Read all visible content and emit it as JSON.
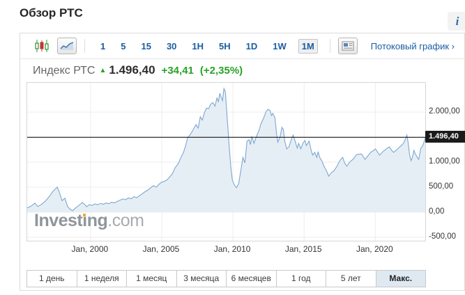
{
  "page": {
    "title": "Обзор РТС",
    "info_icon": "i"
  },
  "toolbar": {
    "chart_types": [
      {
        "name": "candlestick",
        "selected": false
      },
      {
        "name": "area",
        "selected": true
      }
    ],
    "intervals": [
      {
        "label": "1",
        "selected": false
      },
      {
        "label": "5",
        "selected": false
      },
      {
        "label": "15",
        "selected": false
      },
      {
        "label": "30",
        "selected": false
      },
      {
        "label": "1H",
        "selected": false
      },
      {
        "label": "5H",
        "selected": false
      },
      {
        "label": "1D",
        "selected": false
      },
      {
        "label": "1W",
        "selected": false
      },
      {
        "label": "1M",
        "selected": true
      }
    ],
    "news_button": "news-panel",
    "stream_link": "Потоковый график ›"
  },
  "quote": {
    "name": "Индекс РТС",
    "arrow": "▲",
    "last": "1.496,40",
    "change": "+34,41",
    "change_pct": "(+2,35%)"
  },
  "watermark": {
    "part1": "Invest",
    "part2_dotless": "ı",
    "part3": "ng",
    "suffix": ".com"
  },
  "range_buttons": [
    {
      "label": "1 день",
      "selected": false
    },
    {
      "label": "1 неделя",
      "selected": false
    },
    {
      "label": "1 месяц",
      "selected": false
    },
    {
      "label": "3 месяца",
      "selected": false
    },
    {
      "label": "6 месяцев",
      "selected": false
    },
    {
      "label": "1 год",
      "selected": false
    },
    {
      "label": "5 лет",
      "selected": false
    },
    {
      "label": "Макс.",
      "selected": true
    }
  ],
  "colors": {
    "accent_blue": "#1a5da2",
    "up_green": "#28a228",
    "chart_line": "#7da7cf",
    "chart_fill": "#e6eef5",
    "price_tag_bg": "#1b1b1b"
  },
  "chart_data": {
    "type": "area",
    "instrument": "Индекс РТС (RTS Index)",
    "range": "Макс.",
    "grid": true,
    "legend": "none",
    "x_range": [
      1995.55,
      2023.51
    ],
    "y_range": [
      -570,
      2585
    ],
    "baseline": 0,
    "x_ticks": [
      {
        "year": 2000,
        "label": "Jan, 2000"
      },
      {
        "year": 2005,
        "label": "Jan, 2005"
      },
      {
        "year": 2010,
        "label": "Jan, 2010"
      },
      {
        "year": 2015,
        "label": "Jan, 2015"
      },
      {
        "year": 2020,
        "label": "Jan, 2020"
      }
    ],
    "y_ticks": [
      {
        "value": 2000,
        "label": "2.000,00"
      },
      {
        "value": 1000,
        "label": "1.000,00"
      },
      {
        "value": 500,
        "label": "500,00"
      },
      {
        "value": 0,
        "label": "0,00"
      },
      {
        "value": -500,
        "label": "-500,00"
      }
    ],
    "current_price": {
      "value": 1496.4,
      "label": "1.496,40"
    },
    "series": [
      {
        "name": "RTS",
        "x": [
          1995.55,
          1995.84,
          1996.09,
          1996.29,
          1996.53,
          1996.82,
          1997.12,
          1997.36,
          1997.51,
          1997.66,
          1997.8,
          1998.0,
          1998.2,
          1998.39,
          1998.59,
          1998.74,
          1998.93,
          1999.13,
          1999.28,
          1999.42,
          1999.57,
          1999.72,
          1999.91,
          2000.11,
          2000.3,
          2000.5,
          2000.7,
          2000.89,
          2001.09,
          2001.28,
          2001.48,
          2001.68,
          2001.87,
          2002.07,
          2002.27,
          2002.46,
          2002.66,
          2002.85,
          2003.05,
          2003.25,
          2003.44,
          2003.64,
          2003.83,
          2004.03,
          2004.23,
          2004.42,
          2004.62,
          2004.81,
          2005.01,
          2005.21,
          2005.35,
          2005.55,
          2005.75,
          2005.94,
          2006.14,
          2006.33,
          2006.53,
          2006.68,
          2006.82,
          2007.02,
          2007.22,
          2007.41,
          2007.56,
          2007.71,
          2007.85,
          2008.0,
          2008.15,
          2008.29,
          2008.44,
          2008.59,
          2008.74,
          2008.88,
          2008.98,
          2009.08,
          2009.18,
          2009.27,
          2009.37,
          2009.47,
          2009.57,
          2009.67,
          2009.76,
          2009.86,
          2009.96,
          2010.11,
          2010.25,
          2010.4,
          2010.55,
          2010.7,
          2010.84,
          2010.99,
          2011.14,
          2011.23,
          2011.33,
          2011.48,
          2011.63,
          2011.82,
          2011.97,
          2012.17,
          2012.31,
          2012.46,
          2012.61,
          2012.71,
          2012.8,
          2012.95,
          2013.05,
          2013.15,
          2013.3,
          2013.44,
          2013.54,
          2013.64,
          2013.78,
          2013.93,
          2014.13,
          2014.23,
          2014.37,
          2014.52,
          2014.62,
          2014.77,
          2014.91,
          2015.06,
          2015.16,
          2015.35,
          2015.5,
          2015.6,
          2015.75,
          2015.89,
          2015.99,
          2016.09,
          2016.24,
          2016.38,
          2016.58,
          2016.73,
          2016.92,
          2017.07,
          2017.27,
          2017.41,
          2017.56,
          2017.71,
          2017.85,
          2018.0,
          2018.2,
          2018.44,
          2018.69,
          2019.03,
          2019.28,
          2019.52,
          2019.67,
          2019.86,
          2020.01,
          2020.16,
          2020.3,
          2020.5,
          2020.65,
          2020.84,
          2020.99,
          2021.14,
          2021.28,
          2021.48,
          2021.63,
          2021.82,
          2021.97,
          2022.12,
          2022.22,
          2022.31,
          2022.41,
          2022.51,
          2022.61,
          2022.71,
          2022.8,
          2022.95,
          2023.05,
          2023.2,
          2023.34,
          2023.44,
          2023.51
        ],
        "y": [
          85,
          125,
          180,
          115,
          150,
          220,
          320,
          420,
          460,
          500,
          405,
          230,
          280,
          110,
          55,
          30,
          80,
          125,
          160,
          195,
          160,
          110,
          150,
          135,
          165,
          150,
          175,
          160,
          185,
          170,
          200,
          185,
          215,
          240,
          265,
          250,
          285,
          270,
          310,
          290,
          330,
          370,
          410,
          445,
          490,
          530,
          500,
          560,
          600,
          620,
          640,
          700,
          770,
          890,
          960,
          1080,
          1195,
          1330,
          1490,
          1555,
          1655,
          1750,
          1680,
          1905,
          1840,
          1990,
          2080,
          2070,
          2160,
          2190,
          2120,
          2280,
          2210,
          2375,
          2290,
          2230,
          2470,
          2400,
          2000,
          1585,
          1235,
          890,
          640,
          540,
          490,
          570,
          820,
          1095,
          985,
          1420,
          1445,
          1350,
          1515,
          1375,
          1500,
          1625,
          1765,
          1890,
          2000,
          2055,
          2030,
          1930,
          1975,
          1890,
          1610,
          1400,
          1490,
          1695,
          1655,
          1420,
          1265,
          1305,
          1470,
          1540,
          1420,
          1280,
          1375,
          1265,
          1375,
          1430,
          1330,
          1420,
          1235,
          1140,
          1195,
          1095,
          1210,
          1095,
          1030,
          930,
          820,
          720,
          790,
          820,
          900,
          975,
          1050,
          1095,
          980,
          920,
          1000,
          1060,
          1150,
          1165,
          1055,
          1140,
          1195,
          1230,
          1265,
          1200,
          1140,
          1200,
          1235,
          1280,
          1305,
          1240,
          1195,
          1240,
          1280,
          1330,
          1375,
          1460,
          1540,
          1380,
          1150,
          1030,
          1100,
          1235,
          1170,
          1095,
          1055,
          1280,
          1330,
          1420,
          1496
        ]
      }
    ]
  }
}
